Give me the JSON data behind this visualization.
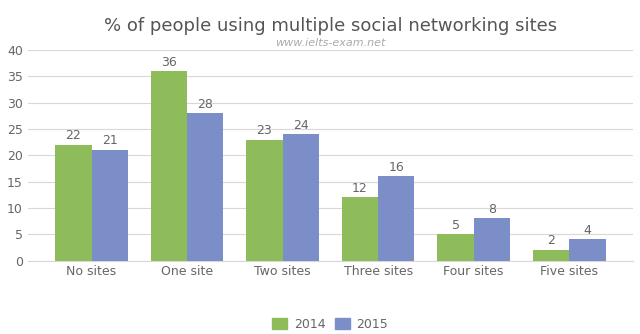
{
  "title": "% of people using multiple social networking sites",
  "watermark": "www.ielts-exam.net",
  "categories": [
    "No sites",
    "One site",
    "Two sites",
    "Three sites",
    "Four sites",
    "Five sites"
  ],
  "values_2014": [
    22,
    36,
    23,
    12,
    5,
    2
  ],
  "values_2015": [
    21,
    28,
    24,
    16,
    8,
    4
  ],
  "color_2014": "#8FBC5A",
  "color_2015": "#7B8EC8",
  "ylim": [
    0,
    40
  ],
  "yticks": [
    0,
    5,
    10,
    15,
    20,
    25,
    30,
    35,
    40
  ],
  "legend_labels": [
    "2014",
    "2015"
  ],
  "bar_width": 0.38,
  "title_fontsize": 13,
  "tick_fontsize": 9,
  "label_fontsize": 9,
  "background_color": "#ffffff",
  "grid_color": "#d8d8d8",
  "watermark_color": "#aaaaaa"
}
